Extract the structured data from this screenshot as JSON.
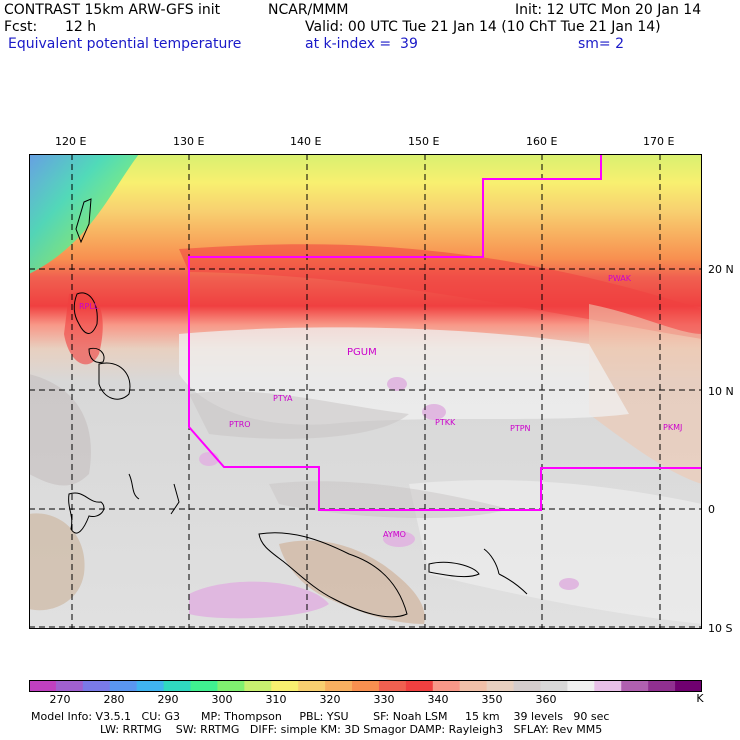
{
  "header": {
    "title": "CONTRAST 15km ARW-GFS init",
    "org": "NCAR/MMM",
    "init": "Init: 12 UTC Mon 20 Jan 14",
    "fcst_label": "Fcst:",
    "fcst_value": "12 h",
    "valid": "Valid: 00 UTC Tue 21 Jan 14 (10 ChT Tue 21 Jan 14)",
    "field": "Equivalent potential temperature",
    "level": "at k-index =  39",
    "smoothing": "sm= 2"
  },
  "map": {
    "lon_labels": [
      "120 E",
      "130 E",
      "140 E",
      "150 E",
      "160 E",
      "170 E"
    ],
    "lat_labels": [
      "20 N",
      "10 N",
      "0",
      "10 S"
    ],
    "stations": [
      "RPLL",
      "PGUM",
      "PTYA",
      "PTRO",
      "PTKK",
      "PTPN",
      "PKMJ",
      "PWAK",
      "AYMO"
    ],
    "colors": {
      "boundary": "#ff00ff",
      "station": "#cc00cc",
      "grid": "#000000"
    }
  },
  "colorbar": {
    "colors": [
      "#c040c0",
      "#a060d0",
      "#7a7ae8",
      "#5a96f0",
      "#40b4f0",
      "#30d8c0",
      "#40f090",
      "#80f070",
      "#c8f070",
      "#f8f070",
      "#f8d070",
      "#f8b060",
      "#f89050",
      "#f06050",
      "#f04040",
      "#f89888",
      "#f0c0a8",
      "#e8d0c0",
      "#d4cccc",
      "#d8d8d8",
      "#f0f0f0",
      "#e8c0e8",
      "#b060b0",
      "#903090",
      "#700070"
    ],
    "labels": [
      "270",
      "280",
      "290",
      "300",
      "310",
      "320",
      "330",
      "340",
      "350",
      "360"
    ],
    "unit": "K"
  },
  "footer": {
    "line1": "Model Info: V3.5.1   CU: G3      MP: Thompson     PBL: YSU       SF: Noah LSM     15 km    39 levels   90 sec",
    "line2": "LW: RRTMG    SW: RRTMG   DIFF: simple KM: 3D Smagor DAMP: Rayleigh3   SFLAY: Rev MM5"
  }
}
